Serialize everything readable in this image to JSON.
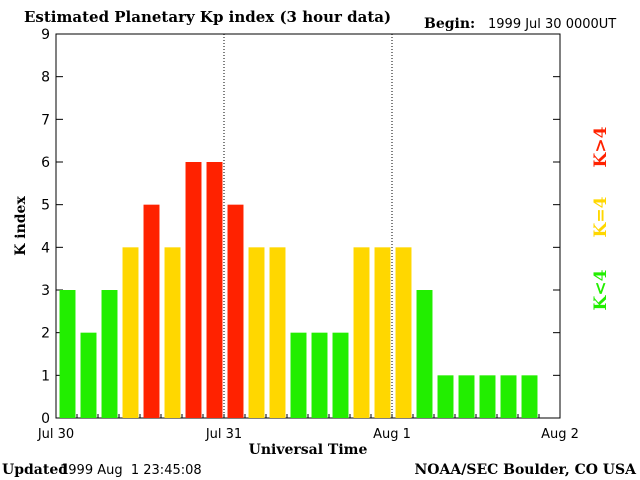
{
  "header": {
    "title": "Estimated Planetary Kp index (3 hour data)",
    "begin_label": "Begin:",
    "begin_value": "1999 Jul 30 0000UT"
  },
  "footer": {
    "updated_label": "Updated",
    "updated_value": "1999 Aug  1 23:45:08",
    "source": "NOAA/SEC Boulder, CO USA"
  },
  "legend": {
    "low": "K<4",
    "mid": "K=4",
    "high": "K>4"
  },
  "colors": {
    "low": "#22ee00",
    "mid": "#ffd700",
    "high": "#ff2200",
    "axis": "#000000"
  },
  "chart_data": {
    "type": "bar",
    "title": "Estimated Planetary Kp index (3 hour data)",
    "xlabel": "Universal Time",
    "ylabel": "K index",
    "ylim": [
      0,
      9
    ],
    "yticks": [
      0,
      1,
      2,
      3,
      4,
      5,
      6,
      7,
      8,
      9
    ],
    "xticks": [
      "Jul 30",
      "Jul 31",
      "Aug 1",
      "Aug 2"
    ],
    "day_dividers": [
      "Jul 31",
      "Aug 1"
    ],
    "interval_hours": 3,
    "values": [
      3,
      2,
      3,
      4,
      5,
      4,
      6,
      6,
      5,
      4,
      4,
      2,
      2,
      2,
      4,
      4,
      4,
      3,
      1,
      1,
      1,
      1,
      1
    ],
    "legend_placement": "right"
  }
}
